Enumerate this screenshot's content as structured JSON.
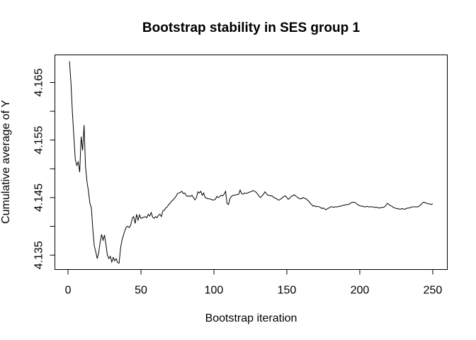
{
  "figure": {
    "background": "#ffffff",
    "foreground": "#000000"
  },
  "chart_data": {
    "type": "line",
    "title": "Bootstrap stability in SES group 1",
    "xlabel": "Bootstrap iteration",
    "ylabel": "Cumulative average of Y",
    "grid": false,
    "legend": "none",
    "line_color": "#000000",
    "axis_color": "#000000",
    "xlim": [
      -9,
      260
    ],
    "ylim": [
      4.1325,
      4.1698
    ],
    "x_ticks": [
      {
        "value": 0,
        "label": "0"
      },
      {
        "value": 50,
        "label": "50"
      },
      {
        "value": 100,
        "label": "100"
      },
      {
        "value": 150,
        "label": "150"
      },
      {
        "value": 200,
        "label": "200"
      },
      {
        "value": 250,
        "label": "250"
      }
    ],
    "y_ticks": [
      {
        "value": 4.135,
        "label": "4.135"
      },
      {
        "value": 4.14,
        "label": ""
      },
      {
        "value": 4.145,
        "label": "4.145"
      },
      {
        "value": 4.15,
        "label": ""
      },
      {
        "value": 4.155,
        "label": "4.155"
      },
      {
        "value": 4.16,
        "label": ""
      },
      {
        "value": 4.165,
        "label": "4.165"
      }
    ],
    "series": [
      {
        "name": "cumulative-average-of-Y",
        "points": [
          [
            1,
            4.1687
          ],
          [
            2,
            4.165
          ],
          [
            3,
            4.1598
          ],
          [
            4,
            4.1556
          ],
          [
            5,
            4.1516
          ],
          [
            6,
            4.1506
          ],
          [
            7,
            4.1512
          ],
          [
            8,
            4.1494
          ],
          [
            9,
            4.1556
          ],
          [
            10,
            4.1532
          ],
          [
            11,
            4.1576
          ],
          [
            12,
            4.1504
          ],
          [
            13,
            4.1478
          ],
          [
            14,
            4.1461
          ],
          [
            15,
            4.144
          ],
          [
            16,
            4.1432
          ],
          [
            17,
            4.1395
          ],
          [
            18,
            4.1366
          ],
          [
            19,
            4.1356
          ],
          [
            20,
            4.1344
          ],
          [
            21,
            4.1354
          ],
          [
            22,
            4.1372
          ],
          [
            23,
            4.1386
          ],
          [
            24,
            4.1376
          ],
          [
            25,
            4.1385
          ],
          [
            26,
            4.1368
          ],
          [
            27,
            4.135
          ],
          [
            28,
            4.1344
          ],
          [
            29,
            4.1348
          ],
          [
            30,
            4.1338
          ],
          [
            31,
            4.1346
          ],
          [
            32,
            4.134
          ],
          [
            33,
            4.1344
          ],
          [
            34,
            4.1337
          ],
          [
            35,
            4.1336
          ],
          [
            36,
            4.1362
          ],
          [
            37,
            4.1376
          ],
          [
            38,
            4.1385
          ],
          [
            39,
            4.1393
          ],
          [
            40,
            4.1399
          ],
          [
            41,
            4.14
          ],
          [
            42,
            4.1398
          ],
          [
            43,
            4.1402
          ],
          [
            44,
            4.1414
          ],
          [
            45,
            4.1417
          ],
          [
            46,
            4.1405
          ],
          [
            47,
            4.1421
          ],
          [
            48,
            4.1411
          ],
          [
            49,
            4.142
          ],
          [
            50,
            4.1414
          ],
          [
            51,
            4.1415
          ],
          [
            52,
            4.1416
          ],
          [
            53,
            4.1417
          ],
          [
            54,
            4.1415
          ],
          [
            55,
            4.1421
          ],
          [
            56,
            4.1418
          ],
          [
            57,
            4.1424
          ],
          [
            58,
            4.1416
          ],
          [
            59,
            4.1414
          ],
          [
            60,
            4.1417
          ],
          [
            61,
            4.1415
          ],
          [
            62,
            4.1419
          ],
          [
            63,
            4.1421
          ],
          [
            64,
            4.1417
          ],
          [
            65,
            4.1427
          ],
          [
            66,
            4.1428
          ],
          [
            67,
            4.1432
          ],
          [
            68,
            4.1434
          ],
          [
            69,
            4.1438
          ],
          [
            70,
            4.144
          ],
          [
            71,
            4.1444
          ],
          [
            72,
            4.1446
          ],
          [
            73,
            4.1449
          ],
          [
            74,
            4.1452
          ],
          [
            75,
            4.1457
          ],
          [
            76,
            4.1458
          ],
          [
            77,
            4.1459
          ],
          [
            78,
            4.1461
          ],
          [
            79,
            4.1457
          ],
          [
            80,
            4.1458
          ],
          [
            81,
            4.1454
          ],
          [
            82,
            4.1452
          ],
          [
            83,
            4.1453
          ],
          [
            84,
            4.1452
          ],
          [
            85,
            4.1454
          ],
          [
            86,
            4.145
          ],
          [
            87,
            4.1446
          ],
          [
            88,
            4.145
          ],
          [
            89,
            4.146
          ],
          [
            90,
            4.1458
          ],
          [
            91,
            4.1461
          ],
          [
            92,
            4.1454
          ],
          [
            93,
            4.1458
          ],
          [
            94,
            4.145
          ],
          [
            95,
            4.1449
          ],
          [
            96,
            4.1448
          ],
          [
            97,
            4.1448
          ],
          [
            98,
            4.1447
          ],
          [
            99,
            4.1446
          ],
          [
            100,
            4.1446
          ],
          [
            101,
            4.1447
          ],
          [
            102,
            4.1452
          ],
          [
            103,
            4.145
          ],
          [
            104,
            4.1452
          ],
          [
            105,
            4.1454
          ],
          [
            106,
            4.1453
          ],
          [
            107,
            4.1456
          ],
          [
            108,
            4.1461
          ],
          [
            109,
            4.144
          ],
          [
            110,
            4.1438
          ],
          [
            111,
            4.1448
          ],
          [
            112,
            4.1452
          ],
          [
            113,
            4.1454
          ],
          [
            114,
            4.1454
          ],
          [
            115,
            4.1455
          ],
          [
            116,
            4.1455
          ],
          [
            117,
            4.1456
          ],
          [
            118,
            4.1463
          ],
          [
            119,
            4.1457
          ],
          [
            120,
            4.1456
          ],
          [
            121,
            4.1458
          ],
          [
            122,
            4.1457
          ],
          [
            123,
            4.1458
          ],
          [
            124,
            4.1459
          ],
          [
            125,
            4.146
          ],
          [
            126,
            4.1461
          ],
          [
            127,
            4.1462
          ],
          [
            128,
            4.1461
          ],
          [
            129,
            4.1459
          ],
          [
            130,
            4.1456
          ],
          [
            131,
            4.1452
          ],
          [
            132,
            4.145
          ],
          [
            133,
            4.1453
          ],
          [
            134,
            4.1456
          ],
          [
            135,
            4.146
          ],
          [
            136,
            4.1457
          ],
          [
            137,
            4.1454
          ],
          [
            138,
            4.1454
          ],
          [
            139,
            4.1453
          ],
          [
            140,
            4.1453
          ],
          [
            141,
            4.145
          ],
          [
            142,
            4.1449
          ],
          [
            143,
            4.1448
          ],
          [
            144,
            4.1446
          ],
          [
            145,
            4.1446
          ],
          [
            146,
            4.1448
          ],
          [
            147,
            4.145
          ],
          [
            148,
            4.1452
          ],
          [
            149,
            4.1453
          ],
          [
            150,
            4.145
          ],
          [
            151,
            4.1447
          ],
          [
            152,
            4.1449
          ],
          [
            153,
            4.1452
          ],
          [
            154,
            4.1453
          ],
          [
            155,
            4.1455
          ],
          [
            156,
            4.1453
          ],
          [
            157,
            4.1451
          ],
          [
            158,
            4.1449
          ],
          [
            159,
            4.1448
          ],
          [
            160,
            4.1448
          ],
          [
            161,
            4.145
          ],
          [
            162,
            4.1449
          ],
          [
            163,
            4.1448
          ],
          [
            164,
            4.1446
          ],
          [
            165,
            4.1444
          ],
          [
            166,
            4.144
          ],
          [
            167,
            4.1438
          ],
          [
            168,
            4.1435
          ],
          [
            169,
            4.1436
          ],
          [
            170,
            4.1434
          ],
          [
            171,
            4.1435
          ],
          [
            172,
            4.1434
          ],
          [
            173,
            4.1433
          ],
          [
            174,
            4.1431
          ],
          [
            175,
            4.1432
          ],
          [
            176,
            4.143
          ],
          [
            177,
            4.1429
          ],
          [
            178,
            4.1431
          ],
          [
            179,
            4.1432
          ],
          [
            180,
            4.1434
          ],
          [
            181,
            4.1434
          ],
          [
            182,
            4.1433
          ],
          [
            183,
            4.1434
          ],
          [
            184,
            4.1434
          ],
          [
            185,
            4.1434
          ],
          [
            186,
            4.1435
          ],
          [
            187,
            4.1435
          ],
          [
            188,
            4.1436
          ],
          [
            189,
            4.1437
          ],
          [
            190,
            4.1437
          ],
          [
            191,
            4.1438
          ],
          [
            192,
            4.1438
          ],
          [
            193,
            4.1439
          ],
          [
            194,
            4.1441
          ],
          [
            195,
            4.1442
          ],
          [
            196,
            4.1442
          ],
          [
            197,
            4.1441
          ],
          [
            198,
            4.1439
          ],
          [
            199,
            4.1437
          ],
          [
            200,
            4.1436
          ],
          [
            201,
            4.1435
          ],
          [
            202,
            4.1435
          ],
          [
            203,
            4.1434
          ],
          [
            204,
            4.1434
          ],
          [
            205,
            4.1435
          ],
          [
            206,
            4.1434
          ],
          [
            207,
            4.1434
          ],
          [
            208,
            4.1434
          ],
          [
            209,
            4.1434
          ],
          [
            210,
            4.1433
          ],
          [
            211,
            4.1433
          ],
          [
            212,
            4.1433
          ],
          [
            213,
            4.1432
          ],
          [
            214,
            4.1432
          ],
          [
            215,
            4.1433
          ],
          [
            216,
            4.1433
          ],
          [
            217,
            4.1434
          ],
          [
            218,
            4.1437
          ],
          [
            219,
            4.144
          ],
          [
            220,
            4.1438
          ],
          [
            221,
            4.1436
          ],
          [
            222,
            4.1435
          ],
          [
            223,
            4.1433
          ],
          [
            224,
            4.1432
          ],
          [
            225,
            4.1431
          ],
          [
            226,
            4.1431
          ],
          [
            227,
            4.143
          ],
          [
            228,
            4.143
          ],
          [
            229,
            4.1431
          ],
          [
            230,
            4.143
          ],
          [
            231,
            4.143
          ],
          [
            232,
            4.1431
          ],
          [
            233,
            4.1432
          ],
          [
            234,
            4.1432
          ],
          [
            235,
            4.1433
          ],
          [
            236,
            4.1434
          ],
          [
            237,
            4.1434
          ],
          [
            238,
            4.1434
          ],
          [
            239,
            4.1434
          ],
          [
            240,
            4.1434
          ],
          [
            241,
            4.1436
          ],
          [
            242,
            4.1438
          ],
          [
            243,
            4.1441
          ],
          [
            244,
            4.1442
          ],
          [
            245,
            4.1441
          ],
          [
            246,
            4.144
          ],
          [
            247,
            4.1439
          ],
          [
            248,
            4.1439
          ],
          [
            249,
            4.1438
          ],
          [
            250,
            4.1439
          ]
        ]
      }
    ]
  }
}
